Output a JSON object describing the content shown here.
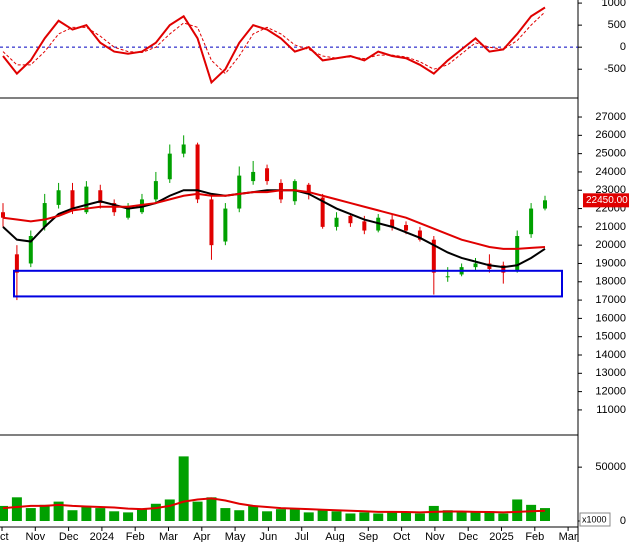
{
  "chart_data": [
    {
      "type": "line",
      "ylim": [
        -1130,
        1070
      ],
      "yticks": [
        -500,
        0,
        500,
        1000
      ],
      "zero_line": true,
      "series": [
        {
          "color": "#e00000",
          "dash": false,
          "values": [
            -200,
            -600,
            -300,
            200,
            600,
            400,
            500,
            100,
            -100,
            -150,
            -100,
            100,
            500,
            700,
            200,
            -800,
            -500,
            100,
            500,
            400,
            200,
            -100,
            0,
            -300,
            -250,
            -200,
            -300,
            -100,
            -200,
            -250,
            -400,
            -600,
            -300,
            -50,
            200,
            -100,
            -50,
            300,
            700,
            900
          ]
        },
        {
          "color": "#e00000",
          "dash": true,
          "values": [
            -100,
            -400,
            -400,
            -100,
            300,
            450,
            450,
            250,
            0,
            -100,
            -120,
            0,
            300,
            550,
            450,
            -300,
            -600,
            -200,
            300,
            450,
            300,
            50,
            -50,
            -200,
            -250,
            -220,
            -260,
            -180,
            -180,
            -220,
            -330,
            -500,
            -400,
            -150,
            100,
            0,
            -50,
            150,
            500,
            800
          ]
        }
      ]
    },
    {
      "type": "candlestick",
      "ylim": [
        9630,
        27930
      ],
      "yticks": [
        11000,
        12000,
        13000,
        14000,
        15000,
        16000,
        17000,
        18000,
        19000,
        20000,
        21000,
        22000,
        23000,
        24000,
        25000,
        26000,
        27000
      ],
      "up_color": "#00a000",
      "down_color": "#e00000",
      "open": [
        21800,
        19500,
        19000,
        21000,
        22200,
        23000,
        21800,
        23000,
        22300,
        21500,
        21800,
        22500,
        23600,
        25000,
        25500,
        22500,
        20200,
        22000,
        23500,
        24200,
        23400,
        22400,
        23300,
        22600,
        21000,
        21600,
        21300,
        20800,
        21400,
        21100,
        20800,
        20300,
        18300,
        18400,
        18800,
        19000,
        18900,
        18600,
        20600,
        22000
      ],
      "high": [
        22300,
        20000,
        20800,
        22800,
        23400,
        23400,
        23500,
        23300,
        22500,
        22300,
        22800,
        24000,
        25500,
        26000,
        25600,
        22700,
        22300,
        24300,
        24600,
        24400,
        23600,
        23600,
        23400,
        22800,
        21800,
        21700,
        21600,
        21700,
        21700,
        21300,
        21000,
        20500,
        18800,
        19000,
        19300,
        19500,
        19100,
        20800,
        22300,
        22700
      ],
      "low": [
        21000,
        17000,
        18800,
        20800,
        22000,
        21700,
        21700,
        22000,
        21600,
        21400,
        21700,
        22300,
        23400,
        24800,
        22300,
        19200,
        20000,
        21800,
        23300,
        23300,
        22300,
        22200,
        22500,
        20900,
        20800,
        21000,
        20600,
        20700,
        20800,
        20600,
        20200,
        17300,
        18000,
        18300,
        18600,
        18500,
        17900,
        18500,
        20400,
        21900
      ],
      "close": [
        21500,
        18500,
        20500,
        22300,
        23000,
        22000,
        23200,
        22300,
        21800,
        22000,
        22500,
        23500,
        25000,
        25500,
        22500,
        20000,
        22000,
        23800,
        24000,
        23500,
        22500,
        23500,
        22800,
        21000,
        21500,
        21200,
        20800,
        21500,
        21000,
        20800,
        20300,
        18500,
        18300,
        18800,
        19000,
        18700,
        18500,
        20500,
        22000,
        22450
      ],
      "series": [
        {
          "color": "#000000",
          "values": [
            21000,
            20300,
            20200,
            21000,
            21700,
            22000,
            22200,
            22400,
            22200,
            22000,
            22100,
            22300,
            22700,
            23000,
            23000,
            22800,
            22700,
            22800,
            22900,
            23000,
            23000,
            23000,
            22800,
            22400,
            22000,
            21700,
            21400,
            21200,
            21000,
            20700,
            20400,
            20000,
            19600,
            19300,
            19100,
            18900,
            18800,
            18900,
            19300,
            19800
          ]
        },
        {
          "color": "#e00000",
          "values": [
            21500,
            21400,
            21300,
            21400,
            21600,
            21900,
            22000,
            22100,
            22100,
            22100,
            22200,
            22300,
            22500,
            22700,
            22800,
            22700,
            22700,
            22800,
            22900,
            22900,
            23000,
            23000,
            22900,
            22700,
            22500,
            22300,
            22100,
            21900,
            21700,
            21500,
            21200,
            20900,
            20600,
            20300,
            20100,
            19900,
            19800,
            19800,
            19850,
            19900
          ]
        }
      ],
      "price_marker": {
        "value": 22450,
        "label": "22450.00"
      },
      "support_zone": [
        17200,
        18600
      ],
      "zone_color": "#0000e0"
    },
    {
      "type": "bar",
      "ylim": [
        0,
        78000
      ],
      "yticks": [
        0,
        50000
      ],
      "unit_label": "x1000",
      "color": "#00a000",
      "values": [
        14000,
        22000,
        12000,
        15000,
        18000,
        10000,
        14000,
        12000,
        9000,
        8000,
        11000,
        16000,
        20000,
        60000,
        18000,
        22000,
        12000,
        10000,
        14000,
        9000,
        11000,
        12000,
        8000,
        10000,
        9000,
        7000,
        8000,
        7000,
        9000,
        8000,
        7000,
        14000,
        10000,
        9000,
        8000,
        9000,
        7000,
        20000,
        15000,
        12000
      ],
      "ma": {
        "color": "#e00000",
        "values": [
          12000,
          13000,
          14000,
          14000,
          15000,
          14000,
          13500,
          13000,
          12500,
          11500,
          11000,
          12000,
          14000,
          18000,
          20000,
          21000,
          19000,
          16000,
          14000,
          13000,
          12000,
          11500,
          11000,
          10500,
          10000,
          9500,
          9000,
          8500,
          8500,
          8300,
          8000,
          8500,
          8800,
          8800,
          8500,
          8300,
          8000,
          8500,
          9000,
          9500
        ]
      },
      "x_labels": [
        "ct",
        "Nov",
        "Dec",
        "2024",
        "Feb",
        "Mar",
        "Apr",
        "May",
        "Jun",
        "Jul",
        "Aug",
        "Sep",
        "Oct",
        "Nov",
        "Dec",
        "2025",
        "Feb",
        "Mar"
      ]
    }
  ]
}
